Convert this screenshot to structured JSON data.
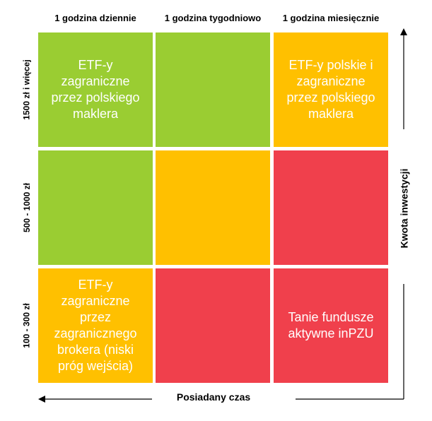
{
  "columns": [
    {
      "label": "1 godzina dziennie"
    },
    {
      "label": "1 godzina tygodniowo"
    },
    {
      "label": "1 godzina miesięcznie"
    }
  ],
  "rows": [
    {
      "label": "1500 zł i więcej"
    },
    {
      "label": "500 - 1000 zł"
    },
    {
      "label": "100 - 300 zł"
    }
  ],
  "cells": [
    [
      {
        "text": "ETF-y zagraniczne przez polskiego maklera",
        "color": "#9acd32"
      },
      {
        "text": "",
        "color": "#9acd32"
      },
      {
        "text": "ETF-y polskie i zagraniczne przez polskiego maklera",
        "color": "#ffc000"
      }
    ],
    [
      {
        "text": "",
        "color": "#9acd32"
      },
      {
        "text": "",
        "color": "#ffc000"
      },
      {
        "text": "",
        "color": "#f0404c"
      }
    ],
    [
      {
        "text": "ETF-y zagraniczne przez zagranicznego brokera (niski próg wejścia)",
        "color": "#ffc000"
      },
      {
        "text": "",
        "color": "#f0404c"
      },
      {
        "text": "Tanie fundusze aktywne inPZU",
        "color": "#f0404c"
      }
    ]
  ],
  "axes": {
    "x_label": "Posiadany czas",
    "y_label": "Kwota inwestycji"
  }
}
